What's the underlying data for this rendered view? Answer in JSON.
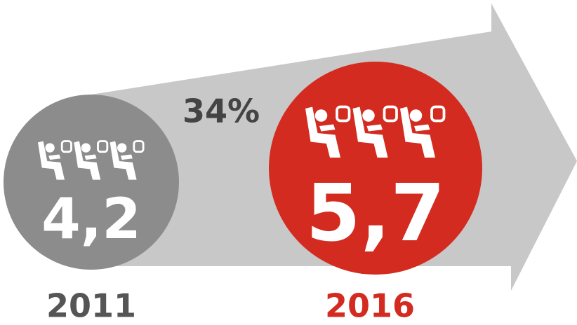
{
  "growth": "34%",
  "items": [
    {
      "value": "4,2",
      "year": "2011"
    },
    {
      "value": "5,7",
      "year": "2016"
    }
  ]
}
